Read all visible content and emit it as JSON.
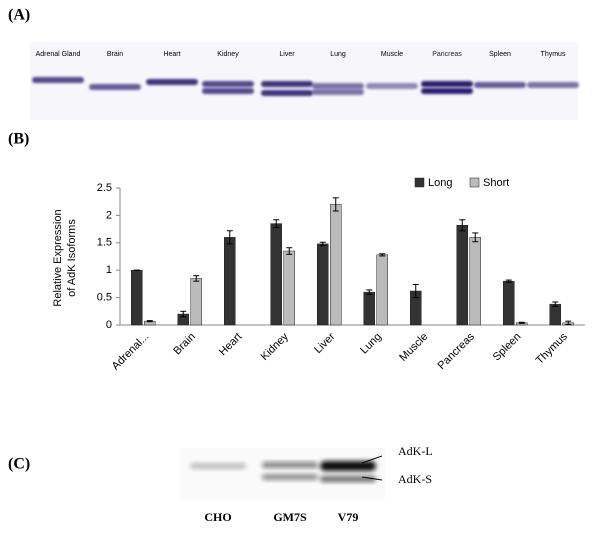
{
  "panel_a": {
    "label": "(A)",
    "lanes": [
      "Adrenal Gland",
      "Brain",
      "Heart",
      "Kidney",
      "Liver",
      "Lung",
      "Muscle",
      "Pancreas",
      "Spleen",
      "Thymus"
    ]
  },
  "panel_b": {
    "label": "(B)"
  },
  "chart_data": {
    "type": "bar",
    "ylabel": [
      "Relative Expression",
      "of AdK Isoforms"
    ],
    "categories": [
      "Adrenal...",
      "Brain",
      "Heart",
      "Kidney",
      "Liver",
      "Lung",
      "Muscle",
      "Pancreas",
      "Spleen",
      "Thymus"
    ],
    "series": [
      {
        "name": "Long",
        "color": "#333333",
        "values": [
          1.0,
          0.2,
          1.6,
          1.85,
          1.48,
          0.6,
          0.62,
          1.82,
          0.8,
          0.38
        ],
        "errors": [
          0,
          0.05,
          0.12,
          0.07,
          0.03,
          0.04,
          0.12,
          0.1,
          0.02,
          0.04
        ]
      },
      {
        "name": "Short",
        "color": "#bbbbbb",
        "values": [
          0.07,
          0.85,
          null,
          1.35,
          2.2,
          1.28,
          null,
          1.6,
          0.04,
          0.04
        ],
        "errors": [
          0.01,
          0.05,
          null,
          0.06,
          0.12,
          0.02,
          null,
          0.08,
          0.01,
          0.03
        ]
      }
    ],
    "ylim": [
      0,
      2.5
    ],
    "yticks": [
      0,
      0.5,
      1,
      1.5,
      2,
      2.5
    ],
    "grid": false,
    "legend": "upper right"
  },
  "panel_c": {
    "label": "(C)",
    "lanes": [
      "CHO",
      "GM7S",
      "V79"
    ],
    "bands": [
      "AdK-L",
      "AdK-S"
    ]
  }
}
